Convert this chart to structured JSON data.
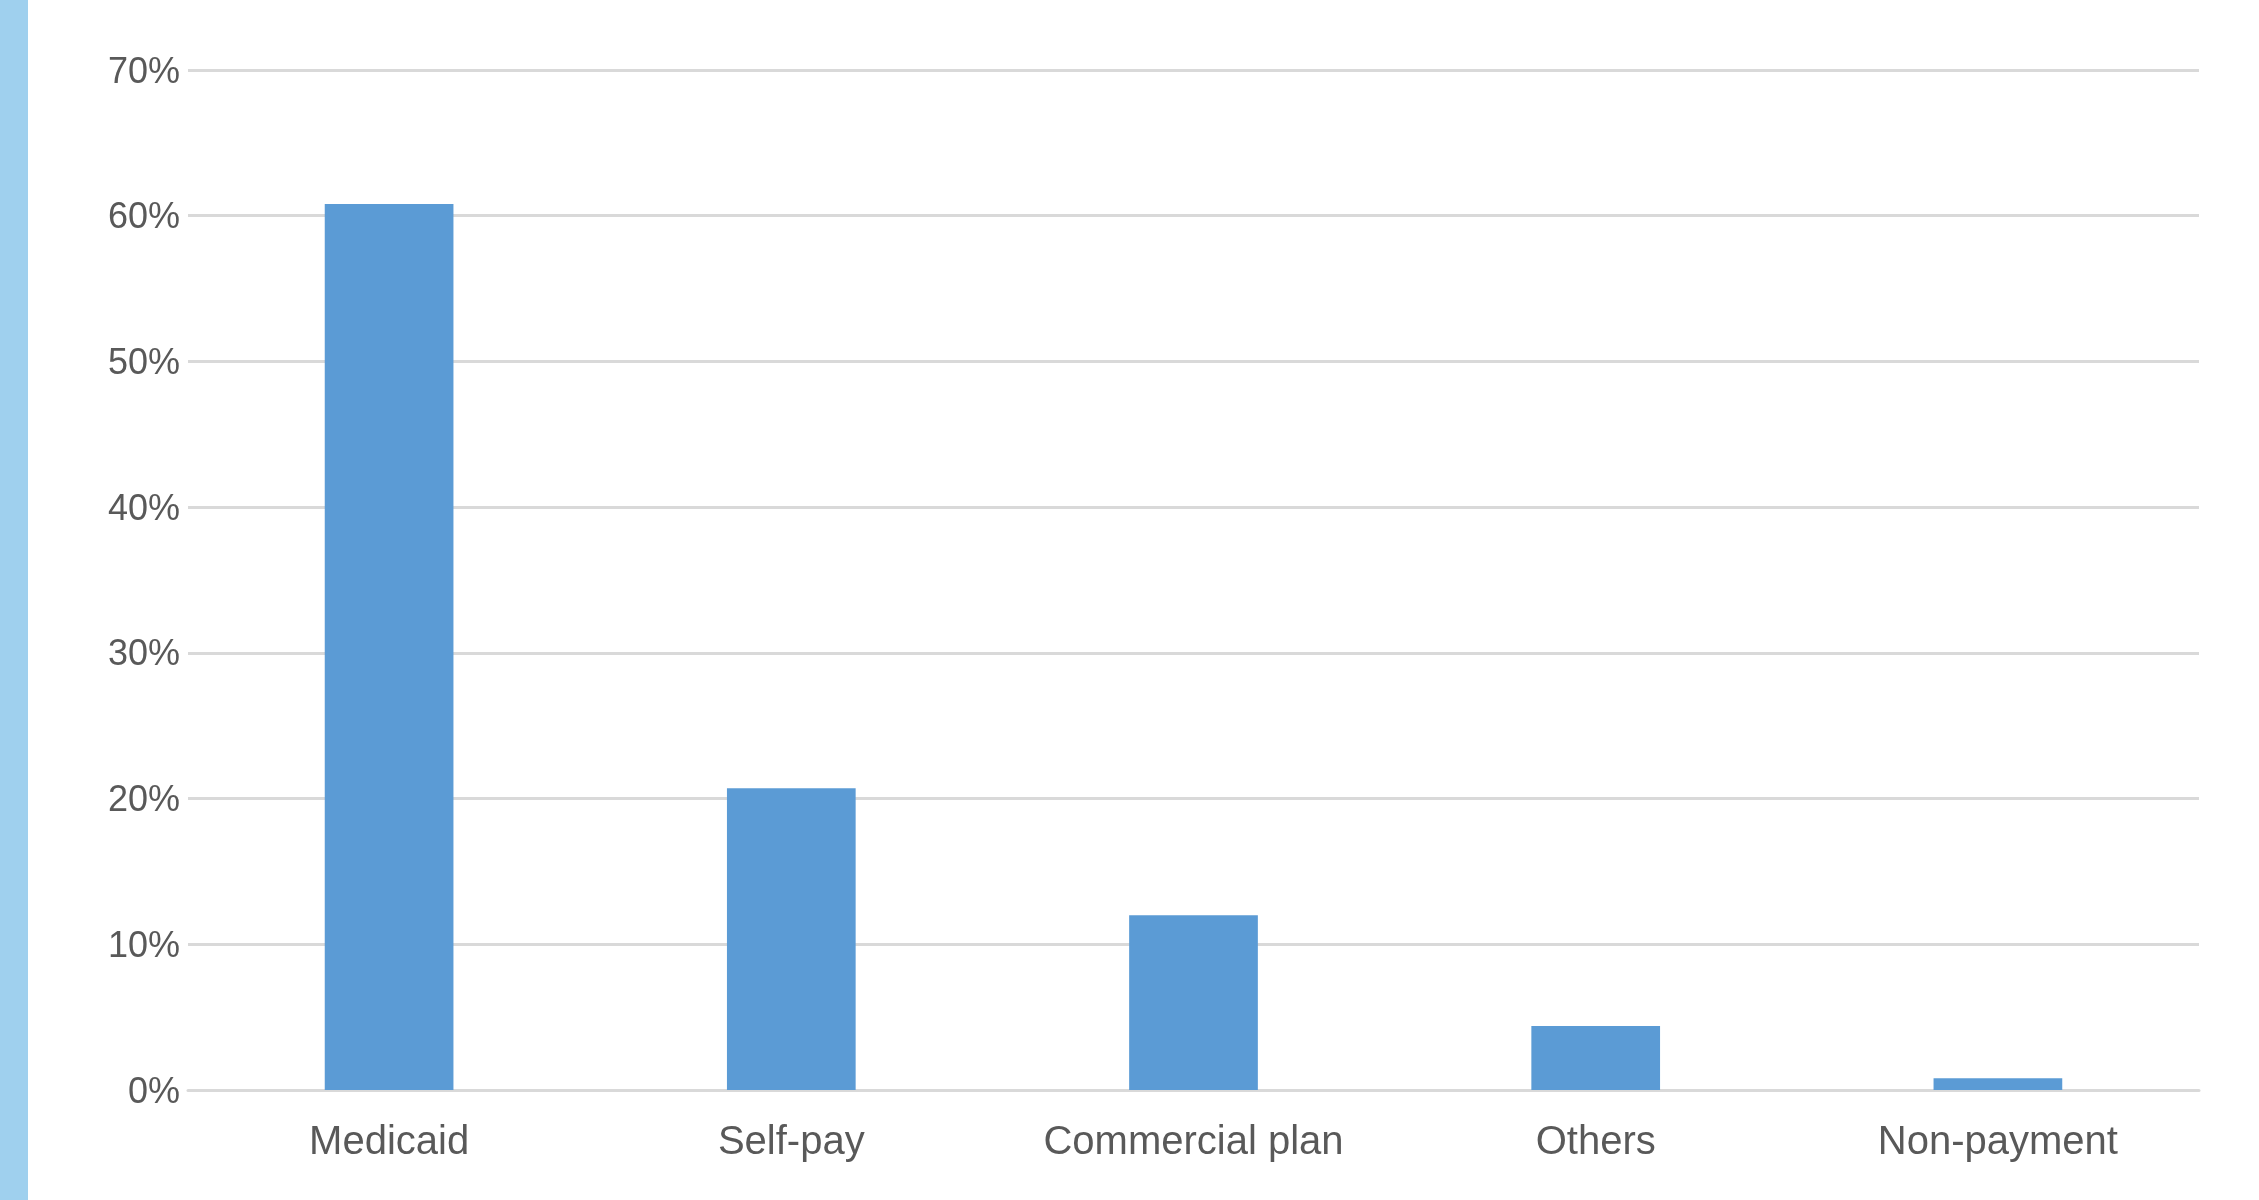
{
  "chart_data": {
    "type": "bar",
    "categories": [
      "Medicaid",
      "Self-pay",
      "Commercial plan",
      "Others",
      "Non-payment"
    ],
    "values": [
      60.8,
      20.7,
      12.0,
      4.4,
      0.8
    ],
    "color": "#5b9bd5",
    "ylim": [
      0,
      70
    ],
    "yticks": [
      {
        "value": 0,
        "label": "0%"
      },
      {
        "value": 10,
        "label": "10%"
      },
      {
        "value": 20,
        "label": "20%"
      },
      {
        "value": 30,
        "label": "30%"
      },
      {
        "value": 40,
        "label": "40%"
      },
      {
        "value": 50,
        "label": "50%"
      },
      {
        "value": 60,
        "label": "60%"
      },
      {
        "value": 70,
        "label": "70%"
      }
    ],
    "grid": "y"
  }
}
